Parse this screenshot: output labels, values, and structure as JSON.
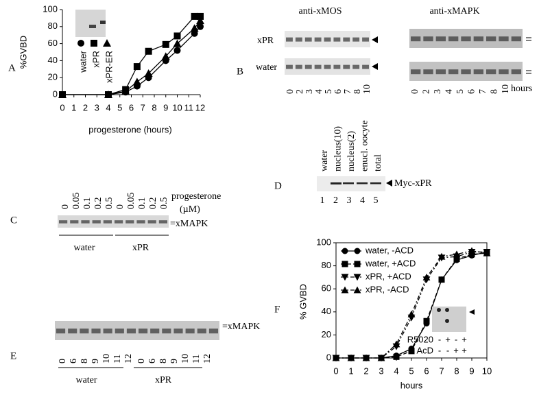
{
  "chart_data": [
    {
      "type": "line",
      "label": "A",
      "ylabel": "%GVBD",
      "xlabel": "progesterone (hours)",
      "xlim": [
        0,
        12
      ],
      "ylim": [
        0,
        100
      ],
      "xticks": [
        0,
        1,
        2,
        3,
        4,
        5,
        6,
        7,
        8,
        9,
        10,
        11,
        12
      ],
      "yticks": [
        0,
        20,
        40,
        60,
        80,
        100
      ],
      "x": [
        0,
        4,
        5.5,
        6.5,
        7.5,
        9,
        10,
        11.5,
        12
      ],
      "series": [
        {
          "name": "water",
          "marker": "circle",
          "color": "#000000",
          "values": [
            0,
            0,
            3,
            10,
            20,
            40,
            52,
            72,
            80
          ]
        },
        {
          "name": "xPR",
          "marker": "square",
          "color": "#000000",
          "values": [
            0,
            0,
            6,
            33,
            51,
            59,
            69,
            92,
            92
          ]
        },
        {
          "name": "xPR-ER",
          "marker": "triangle",
          "color": "#000000",
          "values": [
            0,
            0,
            4,
            15,
            25,
            45,
            60,
            78,
            87
          ]
        }
      ]
    },
    {
      "type": "line",
      "label": "F",
      "ylabel": "% GVBD",
      "xlabel": "hours",
      "xlim": [
        0,
        10
      ],
      "ylim": [
        0,
        100
      ],
      "xticks": [
        0,
        1,
        2,
        3,
        4,
        5,
        6,
        7,
        8,
        9,
        10
      ],
      "yticks": [
        0,
        20,
        40,
        60,
        80,
        100
      ],
      "x": [
        0,
        1,
        2,
        3,
        4,
        5,
        6,
        7,
        8,
        9,
        10
      ],
      "series": [
        {
          "name": "water, -ACD",
          "marker": "circle",
          "dash": "solid",
          "color": "#000000",
          "values": [
            0,
            0,
            0,
            0,
            2,
            8,
            30,
            68,
            85,
            89,
            92
          ]
        },
        {
          "name": "water, +ACD",
          "marker": "square",
          "dash": "dash",
          "color": "#000000",
          "values": [
            0,
            0,
            0,
            0,
            1,
            6,
            32,
            68,
            86,
            90,
            91
          ]
        },
        {
          "name": "xPR, +ACD",
          "marker": "triangle-down",
          "dash": "dashdot",
          "color": "#000000",
          "values": [
            0,
            0,
            0,
            0,
            10,
            35,
            68,
            87,
            88,
            92,
            92
          ]
        },
        {
          "name": "xPR, -ACD",
          "marker": "triangle",
          "dash": "dashdot",
          "color": "#000000",
          "values": [
            0,
            0,
            0,
            0,
            12,
            38,
            70,
            88,
            90,
            93,
            91
          ]
        }
      ],
      "inset": [
        {
          "label": "R5020",
          "signs": [
            "-",
            "+",
            "-",
            "+"
          ]
        },
        {
          "label": "AcD",
          "signs": [
            "-",
            "-",
            "+",
            "+"
          ]
        }
      ]
    }
  ],
  "blots": {
    "B": {
      "label": "B",
      "antibodies": [
        "anti-xMOS",
        "anti-xMAPK"
      ],
      "rows": [
        "xPR",
        "water"
      ],
      "lanes": [
        "0",
        "2",
        "3",
        "4",
        "5",
        "6",
        "7",
        "8",
        "10"
      ],
      "unit": "hours"
    },
    "C": {
      "label": "C",
      "lanes": [
        "0",
        "0.05",
        "0.1",
        "0.2",
        "0.5"
      ],
      "treatment": "progesterone",
      "unit": "(µM)",
      "band": "=xMAPK",
      "groups": [
        "water",
        "xPR"
      ]
    },
    "D": {
      "label": "D",
      "lanes": [
        "water",
        "nucleus(10)",
        "nucleus(2)",
        "enucl. oocyte",
        "total"
      ],
      "numbers": [
        "1",
        "2",
        "3",
        "4",
        "5"
      ],
      "band": "Myc-xPR"
    },
    "E": {
      "label": "E",
      "band": "=xMAPK",
      "lanes": [
        "0",
        "6",
        "8",
        "9",
        "10",
        "11",
        "12"
      ],
      "groups": [
        "water",
        "xPR"
      ]
    }
  }
}
